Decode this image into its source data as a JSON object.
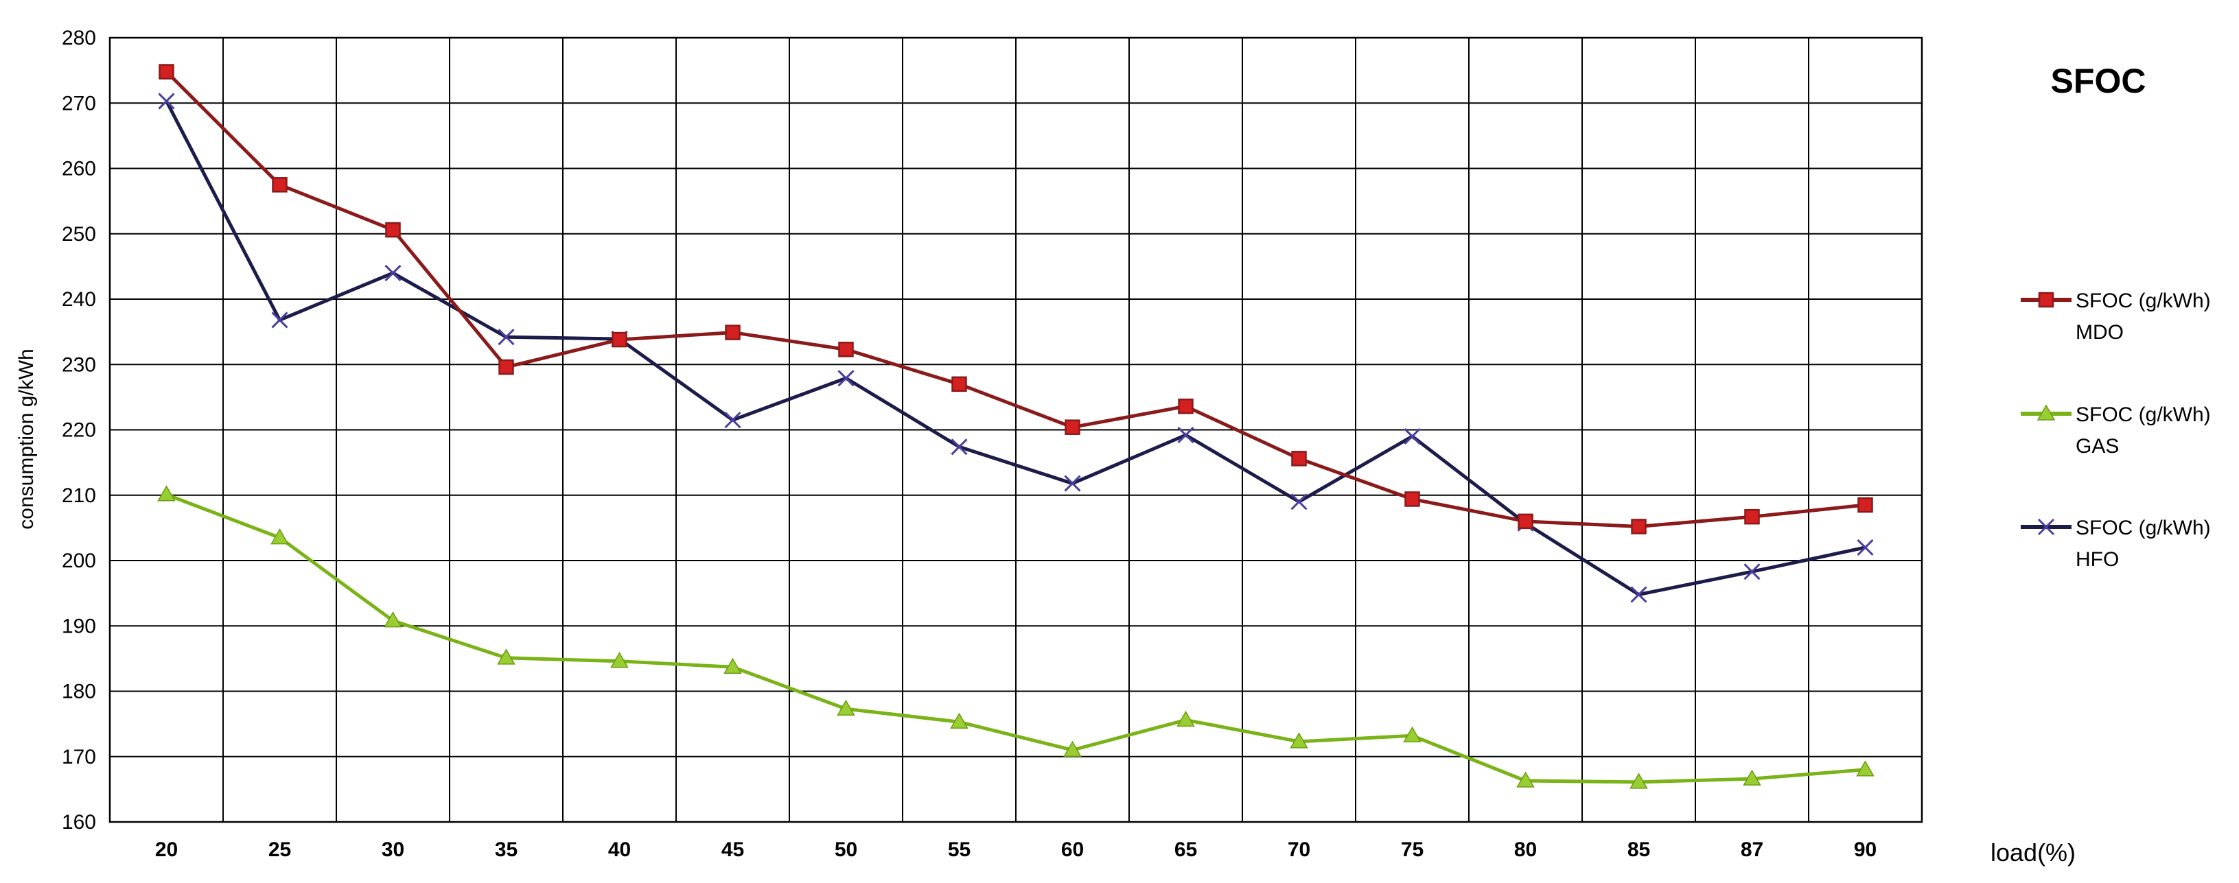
{
  "chart_data": {
    "type": "line",
    "title": "SFOC",
    "xlabel": "load(%)",
    "ylabel": "consumption g/kWh",
    "categories": [
      "20",
      "25",
      "30",
      "35",
      "40",
      "45",
      "50",
      "55",
      "60",
      "65",
      "70",
      "75",
      "80",
      "85",
      "87",
      "90"
    ],
    "ylim": [
      160,
      280
    ],
    "yticks": [
      160,
      170,
      180,
      190,
      200,
      210,
      220,
      230,
      240,
      250,
      260,
      270,
      280
    ],
    "grid": true,
    "legend_position": "right",
    "series": [
      {
        "name": "SFOC  (g/kWh) MDO",
        "legend_line1": "SFOC  (g/kWh)",
        "legend_line2": "MDO",
        "color": "#8b1a1a",
        "marker_color": "#d42020",
        "marker": "square",
        "values": [
          274.8,
          257.5,
          250.6,
          229.6,
          233.8,
          234.9,
          232.3,
          227.0,
          220.4,
          223.6,
          215.6,
          209.4,
          206.0,
          205.2,
          206.7,
          208.5
        ]
      },
      {
        "name": "SFOC  (g/kWh) GAS",
        "legend_line1": "SFOC  (g/kWh)",
        "legend_line2": "GAS",
        "color": "#7ab317",
        "marker_color": "#9acd32",
        "marker": "triangle",
        "values": [
          210.1,
          203.5,
          190.8,
          185.1,
          184.6,
          183.7,
          177.3,
          175.3,
          171.0,
          175.6,
          172.3,
          173.2,
          166.3,
          166.1,
          166.6,
          168.0
        ]
      },
      {
        "name": "SFOC  (g/kWh) HFO",
        "legend_line1": "SFOC  (g/kWh)",
        "legend_line2": "HFO",
        "color": "#1c1c4a",
        "marker_color": "#4a3fa0",
        "marker": "x",
        "values": [
          270.3,
          236.8,
          244.0,
          234.2,
          233.9,
          221.5,
          227.9,
          217.4,
          211.8,
          219.2,
          209.0,
          219.0,
          205.7,
          194.8,
          198.3,
          202.0
        ]
      }
    ]
  }
}
